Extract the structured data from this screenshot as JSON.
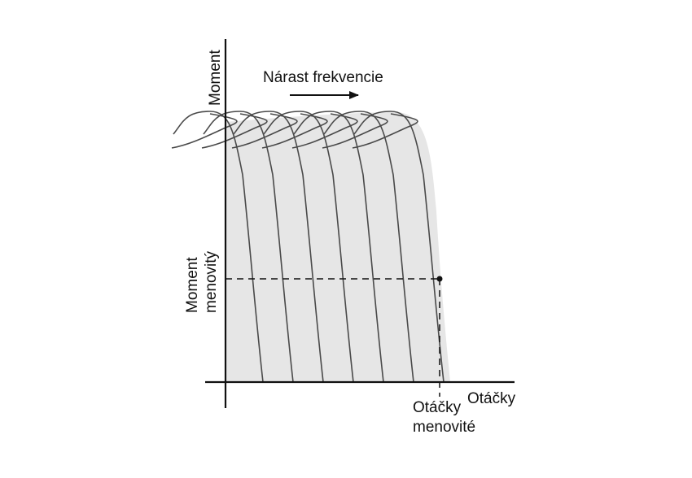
{
  "diagram": {
    "title": "Nárast frekvencie",
    "y_axis_label": "Moment",
    "x_axis_label": "Otáčky",
    "rated_torque_label_line1": "Moment",
    "rated_torque_label_line2": "menovitý",
    "rated_speed_label_line1": "Otáčky",
    "rated_speed_label_line2": "menovité",
    "curve_count": 7,
    "colors": {
      "curve": "#4a4a4a",
      "fill": "#e6e6e6",
      "axis": "#111111",
      "background": "#ffffff"
    }
  }
}
